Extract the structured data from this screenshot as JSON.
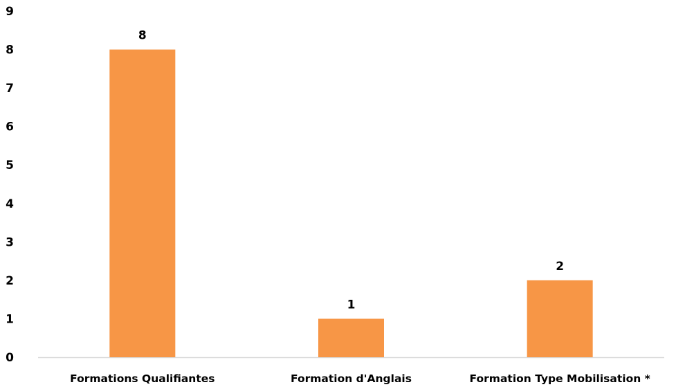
{
  "chart_data": {
    "type": "bar",
    "title": "",
    "xlabel": "",
    "ylabel": "",
    "categories": [
      "Formations Qualifiantes",
      "Formation d'Anglais",
      "Formation Type Mobilisation *"
    ],
    "values": [
      8,
      1,
      2
    ],
    "ylim": [
      0,
      9
    ],
    "yticks": [
      "0",
      "1",
      "2",
      "3",
      "4",
      "5",
      "6",
      "7",
      "8",
      "9"
    ],
    "data_labels": [
      "8",
      "1",
      "2"
    ],
    "grid": false,
    "legend": "none",
    "bar_color": "#F79646",
    "axis_color": "#D9D9D9"
  }
}
